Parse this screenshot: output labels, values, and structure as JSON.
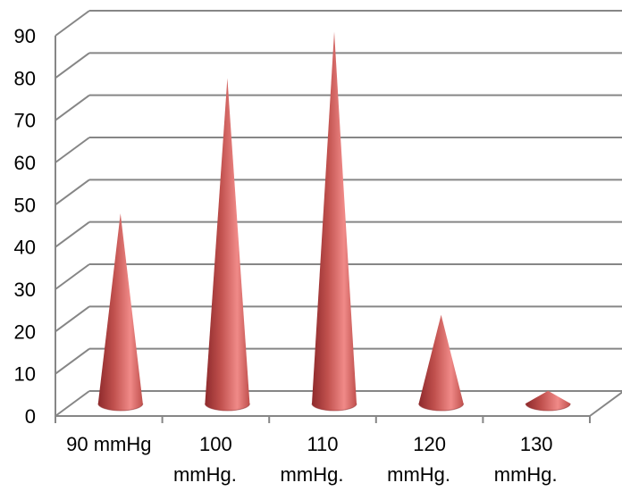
{
  "chart_data": {
    "type": "bar",
    "style": "3d-cone",
    "categories": [
      [
        "90 mmHg"
      ],
      [
        "100",
        "mmHg."
      ],
      [
        "110",
        "mmHg."
      ],
      [
        "120",
        "mmHg."
      ],
      [
        "130",
        "mmHg."
      ]
    ],
    "values": [
      45,
      77,
      88,
      21,
      3
    ],
    "ylim": [
      0,
      90
    ],
    "yticks": [
      0,
      10,
      20,
      30,
      40,
      50,
      60,
      70,
      80,
      90
    ],
    "grid": true,
    "legend": "none",
    "title": "",
    "xlabel": "",
    "ylabel": "",
    "colors": {
      "cone_dark": "#8e2a2c",
      "cone_mid": "#c0504d",
      "cone_light": "#f08a88",
      "grid": "#868686"
    }
  }
}
